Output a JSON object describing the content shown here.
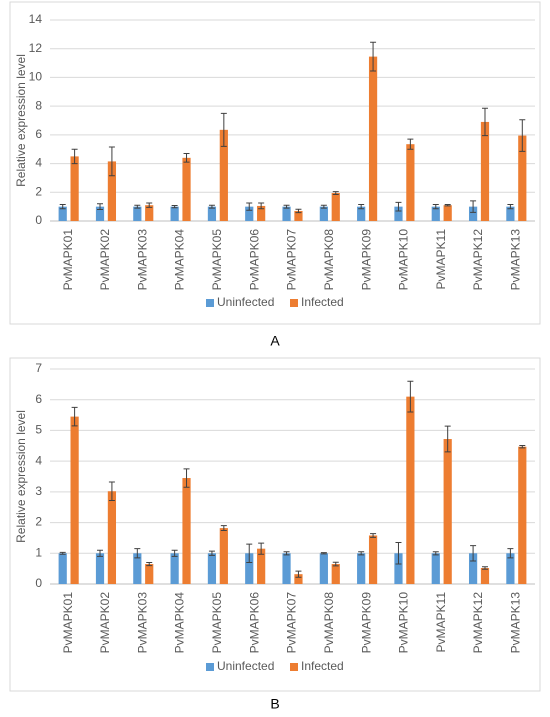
{
  "chart_data": [
    {
      "type": "bar",
      "caption": "A",
      "y_label": "Relative expression level",
      "categories": [
        "PvMAPK01",
        "PvMAPK02",
        "PvMAPK03",
        "PvMAPK04",
        "PvMAPK05",
        "PvMAPK06",
        "PvMAPK07",
        "PvMAPK08",
        "PvMAPK09",
        "PvMAPK10",
        "PvMAPK11",
        "PvMAPK12",
        "PvMAPK13"
      ],
      "series": [
        {
          "name": "Uninfected",
          "color": "#5b9bd5",
          "values": [
            1,
            1,
            1,
            1,
            1,
            1,
            1,
            1,
            1,
            1,
            1,
            1,
            1
          ],
          "errors": [
            0.15,
            0.2,
            0.1,
            0.08,
            0.1,
            0.25,
            0.1,
            0.1,
            0.15,
            0.3,
            0.15,
            0.4,
            0.15
          ]
        },
        {
          "name": "Infected",
          "color": "#ed7d31",
          "values": [
            4.5,
            4.15,
            1.1,
            4.4,
            6.35,
            1.05,
            0.7,
            1.95,
            11.45,
            5.35,
            1.1,
            6.9,
            5.95
          ],
          "errors": [
            0.5,
            1.0,
            0.15,
            0.3,
            1.15,
            0.2,
            0.12,
            0.1,
            1.0,
            0.35,
            0.05,
            0.95,
            1.1
          ]
        }
      ],
      "ylim": [
        0,
        14
      ],
      "yticks": [
        0,
        2,
        4,
        6,
        8,
        10,
        12,
        14
      ],
      "grid": true,
      "legend": "bottom"
    },
    {
      "type": "bar",
      "caption": "B",
      "y_label": "Relative expression level",
      "categories": [
        "PvMAPK01",
        "PvMAPK02",
        "PvMAPK03",
        "PvMAPK04",
        "PvMAPK05",
        "PvMAPK06",
        "PvMAPK07",
        "PvMAPK08",
        "PvMAPK09",
        "PvMAPK10",
        "PvMAPK11",
        "PvMAPK12",
        "PvMAPK13"
      ],
      "series": [
        {
          "name": "Uninfected",
          "color": "#5b9bd5",
          "values": [
            1,
            1,
            1,
            1,
            1,
            1,
            1,
            1,
            1,
            1,
            1,
            1,
            1
          ],
          "errors": [
            0.03,
            0.1,
            0.15,
            0.1,
            0.07,
            0.3,
            0.05,
            0.02,
            0.05,
            0.35,
            0.05,
            0.25,
            0.15
          ]
        },
        {
          "name": "Infected",
          "color": "#ed7d31",
          "values": [
            5.45,
            3.02,
            0.65,
            3.45,
            1.82,
            1.15,
            0.32,
            0.65,
            1.58,
            6.1,
            4.72,
            0.52,
            4.47
          ],
          "errors": [
            0.3,
            0.3,
            0.05,
            0.3,
            0.08,
            0.18,
            0.1,
            0.06,
            0.06,
            0.5,
            0.42,
            0.04,
            0.04
          ]
        }
      ],
      "ylim": [
        0,
        7
      ],
      "yticks": [
        0,
        1,
        2,
        3,
        4,
        5,
        6,
        7
      ],
      "grid": true,
      "legend": "bottom"
    }
  ]
}
